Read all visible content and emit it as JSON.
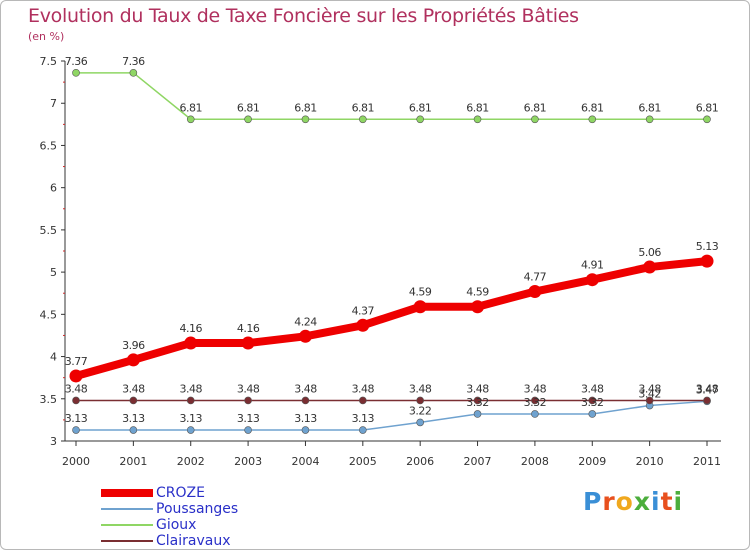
{
  "title": "Evolution du Taux de Taxe Foncière sur les Propriétés Bâties",
  "unit_label": "(en %)",
  "brand": {
    "logo_text": "Proxiti",
    "logo_colors": [
      "#3a8fd6",
      "#e8501e",
      "#f0a81e",
      "#4cae3c",
      "#3a8fd6",
      "#e8501e",
      "#4cae3c"
    ]
  },
  "chart_data": {
    "type": "line",
    "title": "Evolution du Taux de Taxe Foncière sur les Propriétés Bâties",
    "ylabel": "(en %)",
    "xlabel": "",
    "categories": [
      "2000",
      "2001",
      "2002",
      "2003",
      "2004",
      "2005",
      "2006",
      "2007",
      "2008",
      "2009",
      "2010",
      "2011"
    ],
    "ylim": [
      3,
      7.5
    ],
    "yticks": [
      "3",
      "3.5",
      "4",
      "4.5",
      "5",
      "5.5",
      "6",
      "6.5",
      "7",
      "7.5"
    ],
    "grid": false,
    "legend_position": "bottom-left",
    "series": [
      {
        "name": "CROZE",
        "color": "#ee0000",
        "emphasis": true,
        "values": [
          3.77,
          3.96,
          4.16,
          4.16,
          4.24,
          4.37,
          4.59,
          4.59,
          4.77,
          4.91,
          5.06,
          5.13
        ],
        "labels": [
          "3.77",
          "3.96",
          "4.16",
          "4.16",
          "4.24",
          "4.37",
          "4.59",
          "4.59",
          "4.77",
          "4.91",
          "5.06",
          "5.13"
        ]
      },
      {
        "name": "Poussanges",
        "color": "#6fa2cf",
        "emphasis": false,
        "values": [
          3.13,
          3.13,
          3.13,
          3.13,
          3.13,
          3.13,
          3.22,
          3.32,
          3.32,
          3.32,
          3.42,
          3.47
        ],
        "labels": [
          "3.13",
          "3.13",
          "3.13",
          "3.13",
          "3.13",
          "3.13",
          "3.22",
          "3.32",
          "3.32",
          "3.32",
          "3.42",
          "3.47"
        ]
      },
      {
        "name": "Gioux",
        "color": "#8fd664",
        "emphasis": false,
        "values": [
          7.36,
          7.36,
          6.81,
          6.81,
          6.81,
          6.81,
          6.81,
          6.81,
          6.81,
          6.81,
          6.81,
          6.81
        ],
        "labels": [
          "7.36",
          "7.36",
          "6.81",
          "6.81",
          "6.81",
          "6.81",
          "6.81",
          "6.81",
          "6.81",
          "6.81",
          "6.81",
          "6.81"
        ]
      },
      {
        "name": "Clairavaux",
        "color": "#7a2e32",
        "emphasis": false,
        "values": [
          3.48,
          3.48,
          3.48,
          3.48,
          3.48,
          3.48,
          3.48,
          3.48,
          3.48,
          3.48,
          3.48,
          3.48
        ],
        "labels": [
          "3.48",
          "3.48",
          "3.48",
          "3.48",
          "3.48",
          "3.48",
          "3.48",
          "3.48",
          "3.48",
          "3.48",
          "3.48",
          "3.48"
        ]
      }
    ]
  }
}
